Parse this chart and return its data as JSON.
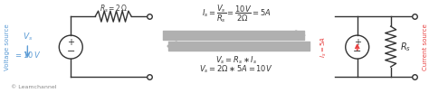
{
  "bg_color": "#ffffff",
  "left_circuit": {
    "vs_color": "#5b9bd5",
    "rs_label": "R_s = 2 Ω",
    "source_label": "Voltage source",
    "watermark": "© Leamchannel"
  },
  "middle": {
    "arrow_color": "#b0b0b0",
    "text_color": "#404040"
  },
  "right_circuit": {
    "is_color": "#e84040",
    "rs_label": "R_s",
    "source_label": "Current source"
  }
}
